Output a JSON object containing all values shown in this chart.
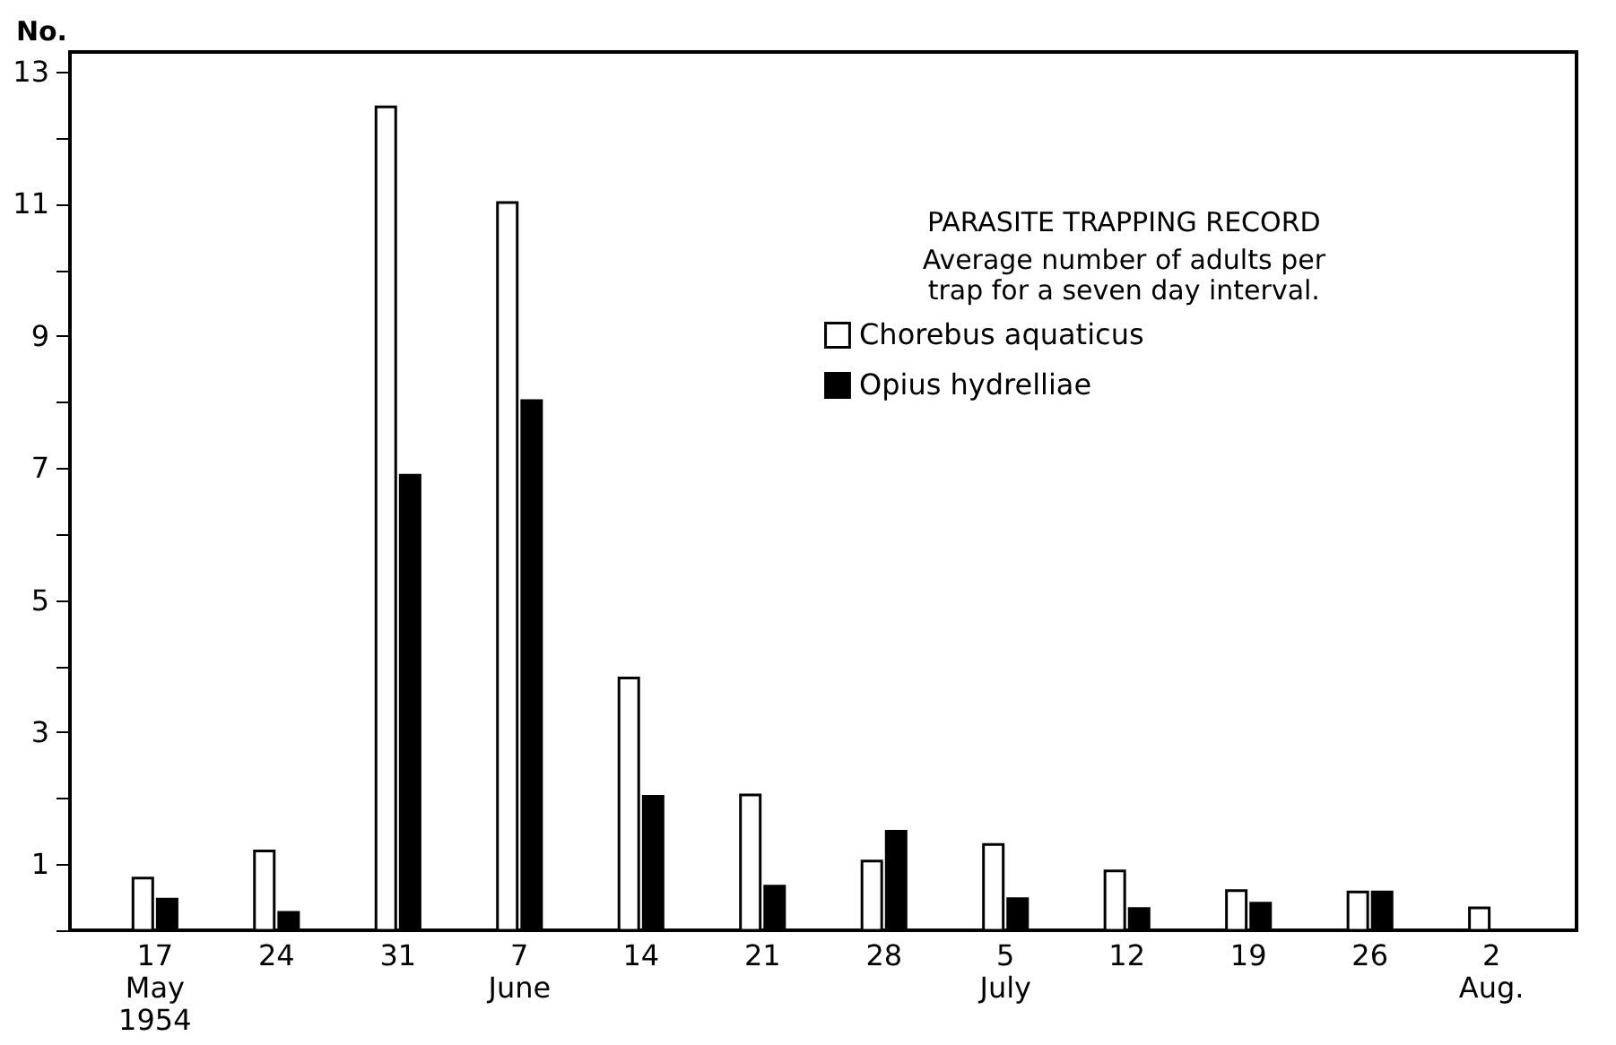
{
  "chart_data": {
    "type": "bar",
    "title": "PARASITE TRAPPING RECORD",
    "subtitle": "Average number of adults per trap for a seven day interval.",
    "ylabel": "No.",
    "categories": [
      "17\nMay\n1954",
      "24",
      "31",
      "7\nJune",
      "14",
      "21",
      "28",
      "5\nJuly",
      "12",
      "19",
      "26",
      "2\nAug."
    ],
    "series": [
      {
        "name": "Chorebus aquaticus",
        "color": "#ffffff",
        "values": [
          0.79,
          1.2,
          12.47,
          11.02,
          3.82,
          2.05,
          1.05,
          1.3,
          0.9,
          0.6,
          0.58,
          0.34
        ]
      },
      {
        "name": "Opius hydrelliae",
        "color": "#000000",
        "values": [
          0.47,
          0.27,
          6.89,
          8.02,
          2.03,
          0.67,
          1.5,
          0.48,
          0.33,
          0.41,
          0.58,
          null
        ]
      }
    ],
    "ylim": [
      0,
      13.3
    ],
    "yticks": [
      {
        "value": 0,
        "label": null
      },
      1,
      {
        "value": 2,
        "label": null
      },
      3,
      {
        "value": 4,
        "label": null
      },
      5,
      {
        "value": 6,
        "label": null
      },
      7,
      {
        "value": 8,
        "label": null
      },
      9,
      {
        "value": 10,
        "label": null
      },
      11,
      {
        "value": 12,
        "label": null
      },
      13
    ],
    "grid": false,
    "legend": "top right"
  }
}
